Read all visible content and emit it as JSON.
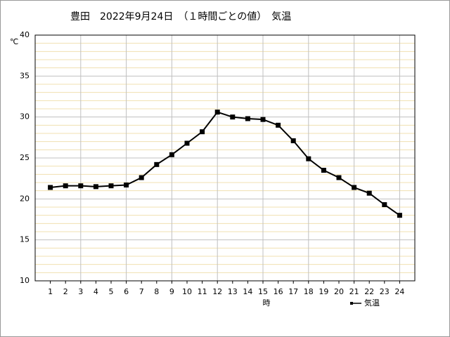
{
  "chart_data": {
    "type": "line",
    "title": "豊田　2022年9月24日　（１時間ごとの値）　気温",
    "y_label": "℃",
    "x_label": "時",
    "x": [
      1,
      2,
      3,
      4,
      5,
      6,
      7,
      8,
      9,
      10,
      11,
      12,
      13,
      14,
      15,
      16,
      17,
      18,
      19,
      20,
      21,
      22,
      23,
      24
    ],
    "xlim": [
      0,
      25
    ],
    "xticks": [
      1,
      2,
      3,
      4,
      5,
      6,
      7,
      8,
      9,
      10,
      11,
      12,
      13,
      14,
      15,
      16,
      17,
      18,
      19,
      20,
      21,
      22,
      23,
      24
    ],
    "ylim": [
      10,
      40
    ],
    "yticks": [
      10,
      15,
      20,
      25,
      30,
      35,
      40
    ],
    "grid": true,
    "legend": "bottom-right",
    "series": [
      {
        "name": "気温",
        "color": "#000000",
        "values": [
          21.4,
          21.6,
          21.6,
          21.5,
          21.6,
          21.7,
          22.6,
          24.2,
          25.4,
          26.8,
          28.2,
          30.6,
          30.0,
          29.8,
          29.7,
          29.0,
          27.1,
          24.9,
          23.5,
          22.6,
          21.4,
          20.7,
          19.3,
          18.0
        ]
      }
    ]
  }
}
